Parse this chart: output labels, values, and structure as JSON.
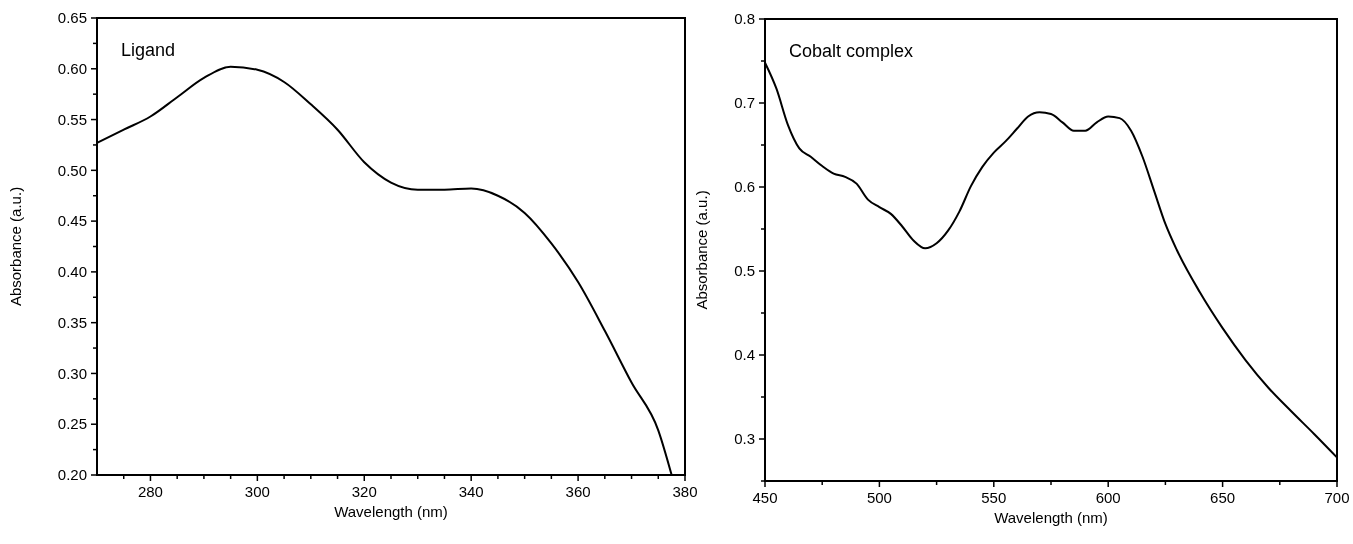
{
  "chart_data": [
    {
      "type": "line",
      "annotations": [
        "Ligand"
      ],
      "xlabel": "Wavelength (nm)",
      "ylabel": "Absorbance (a.u.)",
      "xlim": [
        270,
        380
      ],
      "ylim": [
        0.2,
        0.65
      ],
      "xticks": [
        {
          "value": 275,
          "label": null
        },
        280,
        {
          "value": 285,
          "label": null
        },
        {
          "value": 290,
          "label": null
        },
        {
          "value": 295,
          "label": null
        },
        300,
        {
          "value": 305,
          "label": null
        },
        {
          "value": 310,
          "label": null
        },
        {
          "value": 315,
          "label": null
        },
        320,
        {
          "value": 325,
          "label": null
        },
        {
          "value": 330,
          "label": null
        },
        {
          "value": 335,
          "label": null
        },
        340,
        {
          "value": 345,
          "label": null
        },
        {
          "value": 350,
          "label": null
        },
        {
          "value": 355,
          "label": null
        },
        360,
        {
          "value": 365,
          "label": null
        },
        {
          "value": 370,
          "label": null
        },
        {
          "value": 375,
          "label": null
        },
        380
      ],
      "yticks": [
        {
          "value": 0.2,
          "label": "0.20"
        },
        {
          "value": 0.225,
          "label": null
        },
        0.25,
        {
          "value": 0.275,
          "label": null
        },
        {
          "value": 0.3,
          "label": "0.30"
        },
        {
          "value": 0.325,
          "label": null
        },
        0.35,
        {
          "value": 0.375,
          "label": null
        },
        {
          "value": 0.4,
          "label": "0.40"
        },
        {
          "value": 0.425,
          "label": null
        },
        0.45,
        {
          "value": 0.475,
          "label": null
        },
        {
          "value": 0.5,
          "label": "0.50"
        },
        {
          "value": 0.525,
          "label": null
        },
        0.55,
        {
          "value": 0.575,
          "label": null
        },
        {
          "value": 0.6,
          "label": "0.60"
        },
        {
          "value": 0.625,
          "label": null
        },
        0.65
      ],
      "grid": false,
      "marker": "none",
      "line_style": "solid",
      "series": [
        {
          "color": "#000000",
          "x": [
            270,
            275,
            280,
            285,
            290,
            295,
            300,
            305,
            310,
            315,
            320,
            325,
            330,
            335,
            340,
            345,
            350,
            355,
            360,
            365,
            370,
            375,
            377.5
          ],
          "values": [
            0.527,
            0.54,
            0.553,
            0.572,
            0.591,
            0.602,
            0.599,
            0.587,
            0.565,
            0.54,
            0.508,
            0.488,
            0.481,
            0.481,
            0.482,
            0.475,
            0.458,
            0.428,
            0.39,
            0.342,
            0.291,
            0.244,
            0.2
          ]
        }
      ]
    },
    {
      "type": "line",
      "annotations": [
        "Cobalt complex"
      ],
      "xlabel": "Wavelength (nm)",
      "ylabel": "Absorbance (a.u.)",
      "xlim": [
        450,
        700
      ],
      "ylim": [
        0.25,
        0.8
      ],
      "xticks": [
        450,
        {
          "value": 475,
          "label": null
        },
        500,
        {
          "value": 525,
          "label": null
        },
        550,
        {
          "value": 575,
          "label": null
        },
        600,
        {
          "value": 625,
          "label": null
        },
        650,
        {
          "value": 675,
          "label": null
        },
        700
      ],
      "yticks": [
        {
          "value": 0.25,
          "label": null
        },
        0.3,
        {
          "value": 0.35,
          "label": null
        },
        0.4,
        {
          "value": 0.45,
          "label": null
        },
        0.5,
        {
          "value": 0.55,
          "label": null
        },
        0.6,
        {
          "value": 0.65,
          "label": null
        },
        0.7,
        {
          "value": 0.75,
          "label": null
        },
        0.8
      ],
      "grid": false,
      "marker": "none",
      "line_style": "solid",
      "series": [
        {
          "color": "#000000",
          "x": [
            450,
            455,
            460,
            465,
            470,
            475,
            480,
            485,
            490,
            495,
            500,
            505,
            510,
            515,
            520,
            525,
            530,
            535,
            540,
            545,
            550,
            555,
            560,
            565,
            570,
            575,
            580,
            585,
            590,
            595,
            600,
            605,
            610,
            615,
            620,
            625,
            630,
            640,
            650,
            660,
            670,
            680,
            690,
            700
          ],
          "values": [
            0.748,
            0.717,
            0.674,
            0.646,
            0.636,
            0.625,
            0.616,
            0.612,
            0.604,
            0.585,
            0.576,
            0.568,
            0.553,
            0.536,
            0.527,
            0.533,
            0.548,
            0.571,
            0.601,
            0.624,
            0.641,
            0.654,
            0.669,
            0.684,
            0.689,
            0.687,
            0.677,
            0.667,
            0.667,
            0.677,
            0.684,
            0.682,
            0.667,
            0.636,
            0.596,
            0.556,
            0.525,
            0.475,
            0.432,
            0.394,
            0.361,
            0.333,
            0.306,
            0.278
          ]
        }
      ]
    }
  ]
}
